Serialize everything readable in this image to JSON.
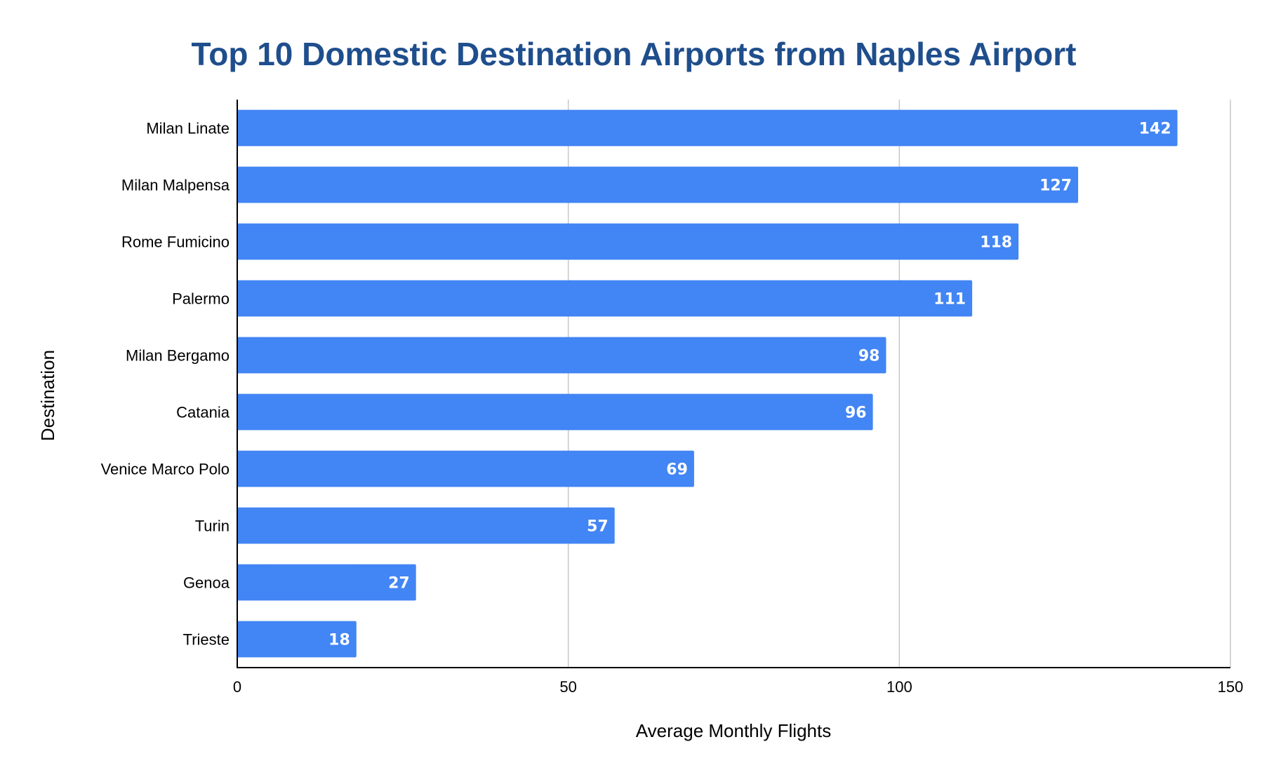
{
  "chart_data": {
    "type": "bar",
    "orientation": "horizontal",
    "title": "Top 10 Domestic Destination Airports from Naples Airport",
    "xlabel": "Average Monthly Flights",
    "ylabel": "Destination",
    "categories": [
      "Milan Linate",
      "Milan Malpensa",
      "Rome Fumicino",
      "Palermo",
      "Milan Bergamo",
      "Catania",
      "Venice Marco Polo",
      "Turin",
      "Genoa",
      "Trieste"
    ],
    "values": [
      142,
      127,
      118,
      111,
      98,
      96,
      69,
      57,
      27,
      18
    ],
    "xlim": [
      0,
      150
    ],
    "xticks": [
      0,
      50,
      100,
      150
    ],
    "grid": true,
    "bar_color": "#4285f4",
    "title_color": "#1f4e8c",
    "data_labels": true
  }
}
